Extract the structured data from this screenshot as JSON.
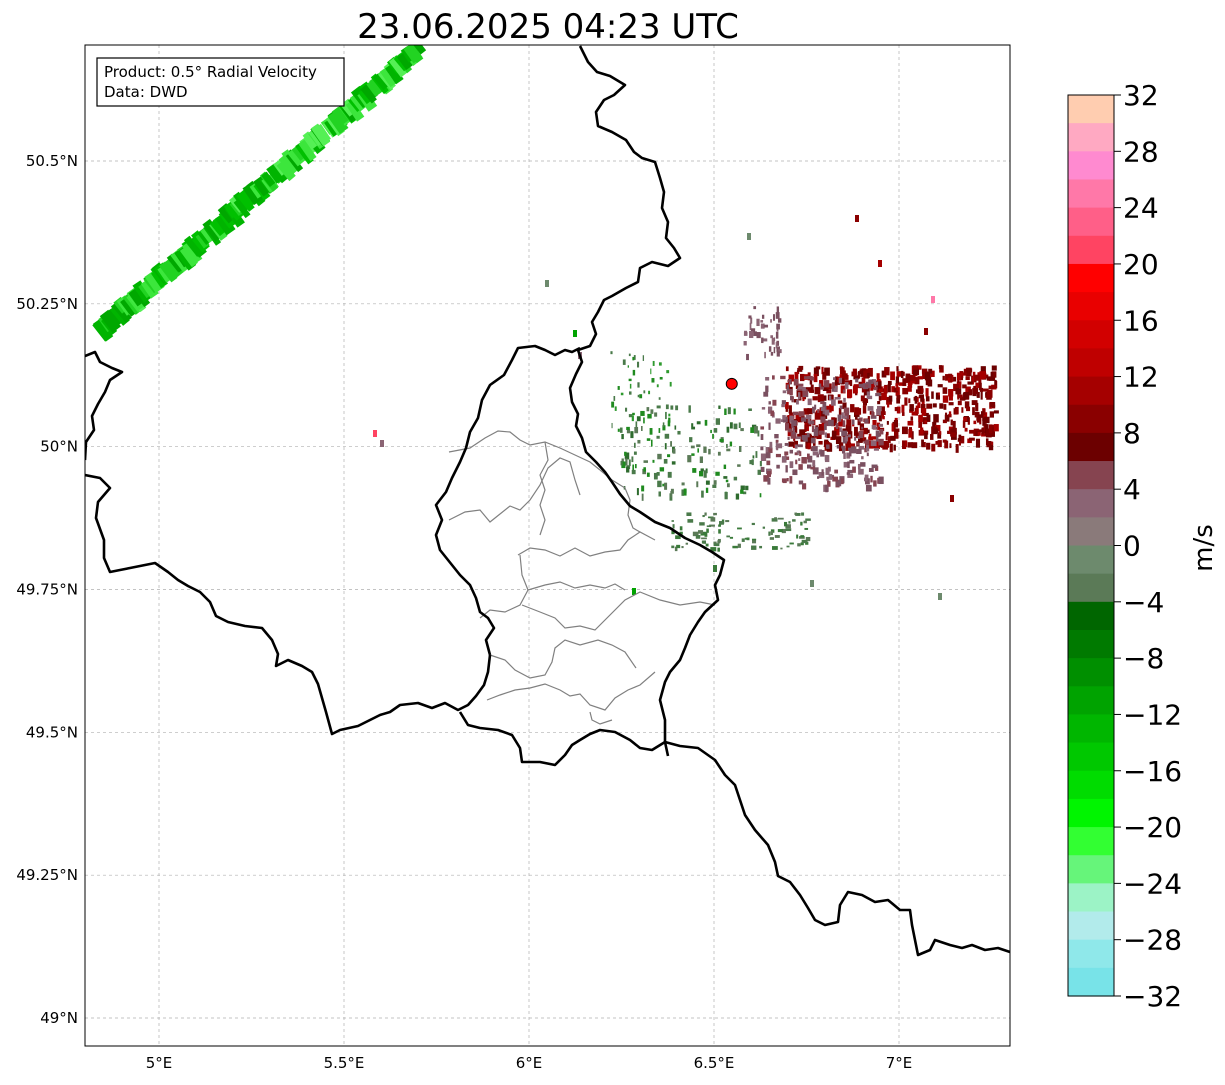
{
  "title": "23.06.2025 04:23 UTC",
  "info_box": {
    "product_line": "Product: 0.5° Radial Velocity",
    "data_line": "Data: DWD"
  },
  "map": {
    "lon_range": [
      4.8,
      7.3
    ],
    "lat_range": [
      48.95,
      50.7
    ],
    "lon_ticks": [
      {
        "value": 5.0,
        "label": "5°E"
      },
      {
        "value": 5.5,
        "label": "5.5°E"
      },
      {
        "value": 6.0,
        "label": "6°E"
      },
      {
        "value": 6.5,
        "label": "6.5°E"
      },
      {
        "value": 7.0,
        "label": "7°E"
      }
    ],
    "lat_ticks": [
      {
        "value": 50.5,
        "label": "50.5°N"
      },
      {
        "value": 50.25,
        "label": "50.25°N"
      },
      {
        "value": 50.0,
        "label": "50°N"
      },
      {
        "value": 49.75,
        "label": "49.75°N"
      },
      {
        "value": 49.5,
        "label": "49.5°N"
      },
      {
        "value": 49.25,
        "label": "49.25°N"
      },
      {
        "value": 49.0,
        "label": "49°N"
      }
    ],
    "gridlines": true,
    "radar_site": {
      "lon": 6.548,
      "lat": 50.11,
      "color": "#ff0000"
    }
  },
  "colorbar": {
    "label": "m/s",
    "min": -32,
    "max": 32,
    "ticks": [
      {
        "value": 32,
        "label": "32"
      },
      {
        "value": 28,
        "label": "28"
      },
      {
        "value": 24,
        "label": "24"
      },
      {
        "value": 20,
        "label": "20"
      },
      {
        "value": 16,
        "label": "16"
      },
      {
        "value": 12,
        "label": "12"
      },
      {
        "value": 8,
        "label": "8"
      },
      {
        "value": 4,
        "label": "4"
      },
      {
        "value": 0,
        "label": "0"
      },
      {
        "value": -4,
        "label": "−4"
      },
      {
        "value": -8,
        "label": "−8"
      },
      {
        "value": -12,
        "label": "−12"
      },
      {
        "value": -16,
        "label": "−16"
      },
      {
        "value": -20,
        "label": "−20"
      },
      {
        "value": -24,
        "label": "−24"
      },
      {
        "value": -28,
        "label": "−28"
      },
      {
        "value": -32,
        "label": "−32"
      }
    ],
    "colors_top_to_bottom": [
      "#ffcdb0",
      "#ffa9c2",
      "#ff8ad0",
      "#ff78a8",
      "#ff5f88",
      "#ff4462",
      "#ff0000",
      "#e90000",
      "#d20000",
      "#bf0000",
      "#a50000",
      "#8a0000",
      "#6c0000",
      "#864450",
      "#8b6474",
      "#8a7a7a",
      "#6d8a6d",
      "#5b7a57",
      "#006600",
      "#007a00",
      "#008f00",
      "#00a300",
      "#00b600",
      "#00c800",
      "#00dc00",
      "#00f500",
      "#32ff32",
      "#66f57a",
      "#9cf3c6",
      "#b2ebeb",
      "#8fe8ea",
      "#78e3e8"
    ]
  },
  "colors": {
    "negative_strong": "#00c000",
    "negative_weak": "#4a7a4a",
    "positive_strong": "#7a0000",
    "positive_weak": "#7a5060",
    "border_country": "#000000",
    "border_canton": "#808080"
  }
}
